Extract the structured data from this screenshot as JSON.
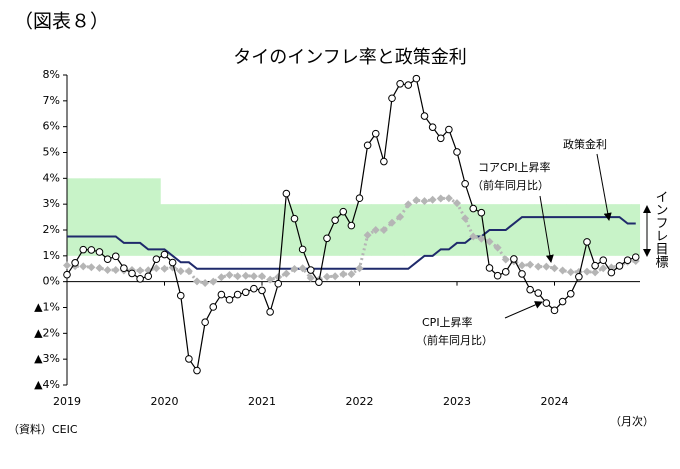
{
  "chart_data": {
    "type": "line",
    "figure_label": "（図表８）",
    "title": "タイのインフレ率と政策金利",
    "source": "（資料）CEIC",
    "frequency": "（月次）",
    "categories": [
      "2019",
      null,
      null,
      null,
      null,
      null,
      null,
      null,
      null,
      null,
      null,
      null,
      "2020",
      null,
      null,
      null,
      null,
      null,
      null,
      null,
      null,
      null,
      null,
      null,
      "2021",
      null,
      null,
      null,
      null,
      null,
      null,
      null,
      null,
      null,
      null,
      null,
      "2022",
      null,
      null,
      null,
      null,
      null,
      null,
      null,
      null,
      null,
      null,
      null,
      "2023",
      null,
      null,
      null,
      null,
      null,
      null,
      null,
      null,
      null,
      null,
      null,
      "2024",
      null,
      null,
      null,
      null,
      null,
      null,
      null,
      null,
      null,
      null
    ],
    "ylim": [
      -4,
      8
    ],
    "yticks": [
      {
        "value": 8,
        "label": "8%"
      },
      {
        "value": 7,
        "label": "7%"
      },
      {
        "value": 6,
        "label": "6%"
      },
      {
        "value": 5,
        "label": "5%"
      },
      {
        "value": 4,
        "label": "4%"
      },
      {
        "value": 3,
        "label": "3%"
      },
      {
        "value": 2,
        "label": "2%"
      },
      {
        "value": 1,
        "label": "1%"
      },
      {
        "value": 0,
        "label": "0%"
      },
      {
        "value": -1,
        "label": "▲1%"
      },
      {
        "value": -2,
        "label": "▲2%"
      },
      {
        "value": -3,
        "label": "▲3%"
      },
      {
        "value": -4,
        "label": "▲4%"
      }
    ],
    "band": {
      "name": "インフレ目標",
      "color": "#c8f3c8",
      "high": [
        4,
        4,
        4,
        4,
        4,
        4,
        4,
        4,
        4,
        4,
        4,
        4,
        3,
        3,
        3,
        3,
        3,
        3,
        3,
        3,
        3,
        3,
        3,
        3,
        3,
        3,
        3,
        3,
        3,
        3,
        3,
        3,
        3,
        3,
        3,
        3,
        3,
        3,
        3,
        3,
        3,
        3,
        3,
        3,
        3,
        3,
        3,
        3,
        3,
        3,
        3,
        3,
        3,
        3,
        3,
        3,
        3,
        3,
        3,
        3,
        3,
        3,
        3,
        3,
        3,
        3,
        3,
        3,
        3,
        3,
        3
      ],
      "low": [
        1,
        1,
        1,
        1,
        1,
        1,
        1,
        1,
        1,
        1,
        1,
        1,
        1,
        1,
        1,
        1,
        1,
        1,
        1,
        1,
        1,
        1,
        1,
        1,
        1,
        1,
        1,
        1,
        1,
        1,
        1,
        1,
        1,
        1,
        1,
        1,
        1,
        1,
        1,
        1,
        1,
        1,
        1,
        1,
        1,
        1,
        1,
        1,
        1,
        1,
        1,
        1,
        1,
        1,
        1,
        1,
        1,
        1,
        1,
        1,
        1,
        1,
        1,
        1,
        1,
        1,
        1,
        1,
        1,
        1,
        1
      ]
    },
    "series": [
      {
        "name": "CPI上昇率",
        "note": "（前年同月比）",
        "color": "#000000",
        "marker": "circle",
        "values": [
          0.27,
          0.73,
          1.24,
          1.23,
          1.15,
          0.87,
          0.98,
          0.52,
          0.32,
          0.11,
          0.21,
          0.87,
          1.05,
          0.74,
          -0.54,
          -2.99,
          -3.44,
          -1.57,
          -0.98,
          -0.5,
          -0.7,
          -0.5,
          -0.41,
          -0.27,
          -0.34,
          -1.17,
          -0.08,
          3.41,
          2.44,
          1.25,
          0.45,
          -0.02,
          1.68,
          2.38,
          2.71,
          2.17,
          3.23,
          5.28,
          5.73,
          4.65,
          7.1,
          7.66,
          7.61,
          7.86,
          6.41,
          5.98,
          5.55,
          5.89,
          5.02,
          3.79,
          2.83,
          2.67,
          0.53,
          0.23,
          0.38,
          0.88,
          0.3,
          -0.31,
          -0.44,
          -0.83,
          -1.11,
          -0.77,
          -0.47,
          0.19,
          1.54,
          0.62,
          0.83,
          0.35,
          0.61,
          0.83,
          0.95
        ]
      },
      {
        "name": "コアCPI上昇率",
        "note": "（前年同月比）",
        "color": "#b5b5b5",
        "marker": "diamond",
        "values": [
          0.63,
          0.6,
          0.59,
          0.56,
          0.53,
          0.45,
          0.45,
          0.43,
          0.45,
          0.43,
          0.44,
          0.52,
          0.5,
          0.55,
          0.41,
          0.41,
          0.01,
          -0.05,
          0.0,
          0.17,
          0.26,
          0.21,
          0.23,
          0.21,
          0.21,
          0.08,
          0.18,
          0.31,
          0.49,
          0.52,
          0.14,
          0.07,
          0.19,
          0.21,
          0.29,
          0.29,
          0.52,
          1.8,
          2.0,
          2.0,
          2.28,
          2.51,
          2.99,
          3.15,
          3.12,
          3.17,
          3.22,
          3.23,
          3.04,
          2.45,
          1.75,
          1.66,
          1.55,
          1.32,
          0.86,
          0.79,
          0.63,
          0.66,
          0.58,
          0.58,
          0.52,
          0.43,
          0.37,
          0.38,
          0.39,
          0.36,
          0.52,
          0.55,
          0.62,
          0.77,
          0.8
        ]
      },
      {
        "name": "政策金利",
        "color": "#1f2a6b",
        "marker": "none",
        "values": [
          1.75,
          1.75,
          1.75,
          1.75,
          1.75,
          1.75,
          1.75,
          1.5,
          1.5,
          1.5,
          1.25,
          1.25,
          1.25,
          1.0,
          0.75,
          0.75,
          0.5,
          0.5,
          0.5,
          0.5,
          0.5,
          0.5,
          0.5,
          0.5,
          0.5,
          0.5,
          0.5,
          0.5,
          0.5,
          0.5,
          0.5,
          0.5,
          0.5,
          0.5,
          0.5,
          0.5,
          0.5,
          0.5,
          0.5,
          0.5,
          0.5,
          0.5,
          0.5,
          0.75,
          1.0,
          1.0,
          1.25,
          1.25,
          1.5,
          1.5,
          1.75,
          1.75,
          2.0,
          2.0,
          2.0,
          2.25,
          2.5,
          2.5,
          2.5,
          2.5,
          2.5,
          2.5,
          2.5,
          2.5,
          2.5,
          2.5,
          2.5,
          2.5,
          2.5,
          2.25,
          2.25
        ]
      }
    ]
  }
}
